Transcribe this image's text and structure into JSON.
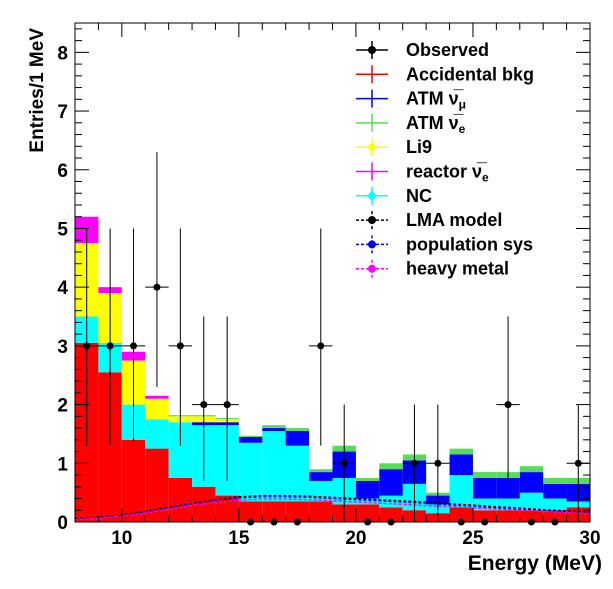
{
  "chart_data": {
    "type": "bar",
    "stacked": true,
    "xlabel": "Energy (MeV)",
    "ylabel": "Entries/1 MeV",
    "xlim": [
      8,
      30
    ],
    "ylim": [
      0,
      8.5
    ],
    "x_ticks": [
      "10",
      "15",
      "20",
      "25",
      "30"
    ],
    "y_ticks": [
      "0",
      "1",
      "2",
      "3",
      "4",
      "5",
      "6",
      "7",
      "8"
    ],
    "bin_edges": [
      8,
      9,
      10,
      11,
      12,
      13,
      14,
      15,
      16,
      17,
      18,
      19,
      20,
      21,
      22,
      23,
      24,
      25,
      26,
      27,
      28,
      29,
      30
    ],
    "stack_order": [
      "Accidental bkg",
      "NC",
      "ATM nu_mu",
      "Li9",
      "ATM nu_e",
      "reactor nu_e"
    ],
    "series": [
      {
        "name": "Accidental bkg",
        "color": "#ff0000",
        "values": [
          3.05,
          2.55,
          1.4,
          1.25,
          0.75,
          0.6,
          0.45,
          0.35,
          0.35,
          0.35,
          0.35,
          0.3,
          0.3,
          0.25,
          0.2,
          0.15,
          0.25,
          0.2,
          0.2,
          0.2,
          0.2,
          0.25
        ]
      },
      {
        "name": "NC",
        "color": "#00ffff",
        "values": [
          0.45,
          0.5,
          0.6,
          0.5,
          0.95,
          1.05,
          1.2,
          1.0,
          1.2,
          0.95,
          0.35,
          0.45,
          0.1,
          0.2,
          0.45,
          0.15,
          0.55,
          0.2,
          0.2,
          0.3,
          0.2,
          0.1
        ]
      },
      {
        "name": "ATM nu_mu",
        "color": "#0000ff",
        "values": [
          0.0,
          0.0,
          0.0,
          0.0,
          0.0,
          0.05,
          0.05,
          0.1,
          0.05,
          0.25,
          0.15,
          0.45,
          0.3,
          0.45,
          0.4,
          0.15,
          0.35,
          0.35,
          0.35,
          0.35,
          0.25,
          0.3
        ]
      },
      {
        "name": "Li9",
        "color": "#ffff00",
        "values": [
          1.25,
          0.85,
          0.75,
          0.35,
          0.1,
          0.1,
          0.05,
          0.0,
          0.0,
          0.0,
          0.0,
          0.0,
          0.0,
          0.0,
          0.0,
          0.0,
          0.0,
          0.0,
          0.0,
          0.0,
          0.0,
          0.0
        ]
      },
      {
        "name": "ATM nu_e",
        "color": "#55dd55",
        "values": [
          0.0,
          0.0,
          0.0,
          0.0,
          0.02,
          0.02,
          0.02,
          0.02,
          0.05,
          0.05,
          0.05,
          0.1,
          0.05,
          0.1,
          0.1,
          0.05,
          0.1,
          0.1,
          0.1,
          0.1,
          0.1,
          0.1
        ]
      },
      {
        "name": "reactor nu_e",
        "color": "#ff00ff",
        "values": [
          0.45,
          0.1,
          0.15,
          0.05,
          0.0,
          0.0,
          0.0,
          0.0,
          0.0,
          0.0,
          0.0,
          0.0,
          0.0,
          0.0,
          0.0,
          0.0,
          0.0,
          0.0,
          0.0,
          0.0,
          0.0,
          0.0
        ]
      }
    ],
    "observed": {
      "name": "Observed",
      "x": [
        8.5,
        9.5,
        10.5,
        11.5,
        12.5,
        13.5,
        14.5,
        15.5,
        16.5,
        17.5,
        18.5,
        19.5,
        20.5,
        21.5,
        22.5,
        23.5,
        24.5,
        25.5,
        26.5,
        27.5,
        28.5,
        29.5
      ],
      "y": [
        3,
        3,
        3,
        4,
        3,
        2,
        2,
        0,
        0,
        0,
        3,
        1,
        0,
        0,
        1,
        1,
        0,
        0,
        2,
        0,
        0,
        1
      ]
    },
    "model_curves": [
      {
        "name": "LMA model",
        "color": "#000000",
        "dash": "3,2",
        "x": [
          8,
          9,
          10,
          11,
          12,
          13,
          14,
          15,
          16,
          17,
          18,
          19,
          20,
          21,
          22,
          23,
          24,
          25,
          26,
          27,
          28,
          29,
          30
        ],
        "y": [
          0.06,
          0.08,
          0.12,
          0.18,
          0.25,
          0.32,
          0.38,
          0.43,
          0.45,
          0.45,
          0.44,
          0.42,
          0.4,
          0.38,
          0.36,
          0.34,
          0.31,
          0.29,
          0.26,
          0.24,
          0.21,
          0.19,
          0.17
        ]
      },
      {
        "name": "population sys",
        "color": "#0000ff",
        "dash": "3,2",
        "x": [
          8,
          9,
          10,
          11,
          12,
          13,
          14,
          15,
          16,
          17,
          18,
          19,
          20,
          21,
          22,
          23,
          24,
          25,
          26,
          27,
          28,
          29,
          30
        ],
        "y": [
          0.05,
          0.07,
          0.11,
          0.17,
          0.24,
          0.31,
          0.37,
          0.41,
          0.43,
          0.43,
          0.42,
          0.4,
          0.38,
          0.36,
          0.34,
          0.32,
          0.29,
          0.27,
          0.24,
          0.22,
          0.2,
          0.18,
          0.16
        ]
      },
      {
        "name": "heavy metal",
        "color": "#ff00ff",
        "dash": "3,2",
        "x": [
          8,
          9,
          10,
          11,
          12,
          13,
          14,
          15,
          16,
          17,
          18,
          19,
          20,
          21,
          22,
          23,
          24,
          25,
          26,
          27,
          28,
          29,
          30
        ],
        "y": [
          0.04,
          0.06,
          0.1,
          0.15,
          0.22,
          0.28,
          0.33,
          0.37,
          0.39,
          0.39,
          0.38,
          0.36,
          0.34,
          0.32,
          0.3,
          0.28,
          0.26,
          0.24,
          0.22,
          0.2,
          0.18,
          0.16,
          0.14
        ]
      }
    ],
    "legend": {
      "placement": "top-right",
      "entries": [
        {
          "label": "Observed",
          "style": "marker-errorbar",
          "color": "#000000"
        },
        {
          "label": "Accidental bkg",
          "style": "line-errorbar",
          "color": "#ff0000"
        },
        {
          "label": "ATM ν̅",
          "sub": "μ",
          "style": "line-errorbar",
          "color": "#0000ff"
        },
        {
          "label": "ATM ν̅",
          "sub": "e",
          "style": "line-errorbar",
          "color": "#55dd55"
        },
        {
          "label": "Li9",
          "style": "marker-errorbar",
          "color": "#ffff00",
          "marker": "diamond"
        },
        {
          "label": "reactor  ν̅",
          "sub": "e",
          "style": "line-errorbar",
          "color": "#ff00ff"
        },
        {
          "label": "NC",
          "style": "marker-errorbar",
          "color": "#00ffff",
          "marker": "diamond"
        },
        {
          "label": "LMA model",
          "style": "dashed-marker",
          "color": "#000000",
          "marker": "circle"
        },
        {
          "label": "population sys",
          "style": "dashed-marker",
          "color": "#0000ff",
          "marker": "circle"
        },
        {
          "label": "heavy metal",
          "style": "dashed-marker",
          "color": "#ff00ff",
          "marker": "circle"
        }
      ]
    }
  }
}
